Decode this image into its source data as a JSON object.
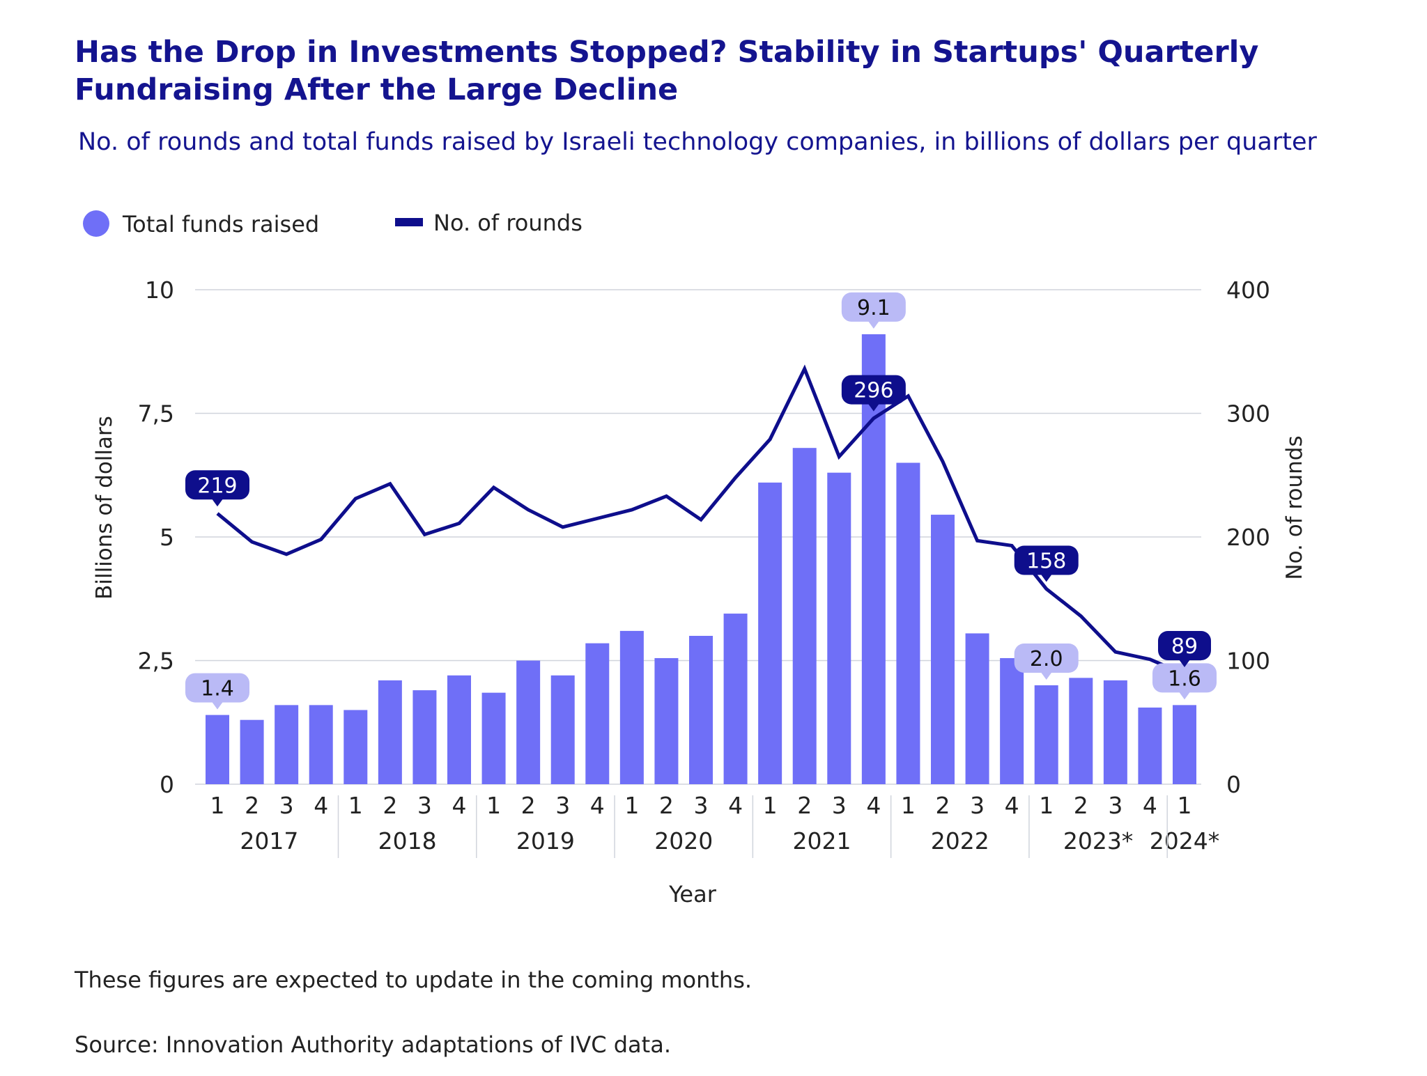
{
  "title": "Has the Drop in Investments Stopped? Stability in Startups' Quarterly Fundraising After the Large Decline",
  "subtitle": "No. of rounds and total funds raised by Israeli technology companies, in billions of dollars per quarter",
  "notes": {
    "update": "These figures are expected to update in the coming months.",
    "source": "Source: Innovation Authority adaptations of IVC data."
  },
  "colors": {
    "bars": "#6f6ff7",
    "line": "#0e0e8c",
    "bar_label_bg": "#babaf6",
    "title": "#14148f",
    "grid": "#d0d4dc"
  },
  "chart_data": {
    "type": "bar+line",
    "xlabel": "Year",
    "ylabel": "Billions of dollars",
    "y2label": "No. of rounds",
    "ylim": [
      0,
      10
    ],
    "y2lim": [
      0,
      400
    ],
    "yticks": [
      "0",
      "2,5",
      "5",
      "7,5",
      "10"
    ],
    "y2ticks": [
      "0",
      "100",
      "200",
      "300",
      "400"
    ],
    "grid": true,
    "legend_placement": "top-left",
    "years": [
      "2017",
      "2018",
      "2019",
      "2020",
      "2021",
      "2022",
      "2023*",
      "2024*"
    ],
    "quarters": [
      "1",
      "2",
      "3",
      "4",
      "1",
      "2",
      "3",
      "4",
      "1",
      "2",
      "3",
      "4",
      "1",
      "2",
      "3",
      "4",
      "1",
      "2",
      "3",
      "4",
      "1",
      "2",
      "3",
      "4",
      "1",
      "2",
      "3",
      "4",
      "1"
    ],
    "series": [
      {
        "name": "Total funds raised",
        "kind": "bar",
        "axis": "left",
        "values": [
          1.4,
          1.3,
          1.6,
          1.6,
          1.5,
          2.1,
          1.9,
          2.2,
          1.85,
          2.5,
          2.2,
          2.85,
          3.1,
          2.55,
          3.0,
          3.45,
          6.1,
          6.8,
          6.3,
          9.1,
          6.5,
          5.45,
          3.05,
          2.55,
          2.0,
          2.15,
          2.1,
          1.55,
          1.6
        ]
      },
      {
        "name": "No. of rounds",
        "kind": "line",
        "axis": "right",
        "values": [
          219,
          196,
          186,
          198,
          231,
          243,
          202,
          211,
          240,
          222,
          208,
          215,
          222,
          233,
          214,
          248,
          279,
          336,
          265,
          296,
          314,
          261,
          197,
          193,
          158,
          136,
          107,
          101,
          89
        ]
      }
    ],
    "annotations": [
      {
        "series": 0,
        "index": 0,
        "label": "1.4"
      },
      {
        "series": 0,
        "index": 19,
        "label": "9.1"
      },
      {
        "series": 0,
        "index": 24,
        "label": "2.0"
      },
      {
        "series": 0,
        "index": 28,
        "label": "1.6"
      },
      {
        "series": 1,
        "index": 0,
        "label": "219"
      },
      {
        "series": 1,
        "index": 19,
        "label": "296"
      },
      {
        "series": 1,
        "index": 24,
        "label": "158"
      },
      {
        "series": 1,
        "index": 28,
        "label": "89"
      }
    ]
  }
}
